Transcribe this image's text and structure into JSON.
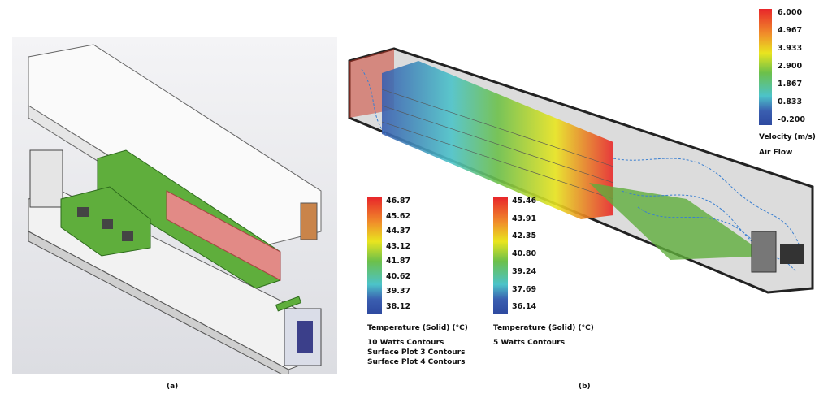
{
  "panel_a": {
    "caption": "(a)"
  },
  "panel_b": {
    "caption": "(b)"
  },
  "legend_10w": {
    "ticks": [
      "46.87",
      "45.62",
      "44.37",
      "43.12",
      "41.87",
      "40.62",
      "39.37",
      "38.12"
    ],
    "title": "Temperature (Solid) (°C)",
    "lines": [
      "10 Watts Contours",
      "Surface Plot 3 Contours",
      "Surface Plot 4 Contours"
    ]
  },
  "legend_5w": {
    "ticks": [
      "45.46",
      "43.91",
      "42.35",
      "40.80",
      "39.24",
      "37.69",
      "36.14"
    ],
    "title": "Temperature (Solid) (°C)",
    "lines": [
      "5 Watts Contours"
    ]
  },
  "legend_velocity": {
    "ticks": [
      "6.000",
      "4.967",
      "3.933",
      "2.900",
      "1.867",
      "0.833",
      "-0.200"
    ],
    "title": "Velocity (m/s)",
    "lines": [
      "Air Flow"
    ]
  },
  "colors": {
    "hot": "#e8262a",
    "warm": "#e9e51f",
    "mid": "#6cc04a",
    "cool": "#3a5eb0",
    "pcb": "#5fae3c"
  }
}
